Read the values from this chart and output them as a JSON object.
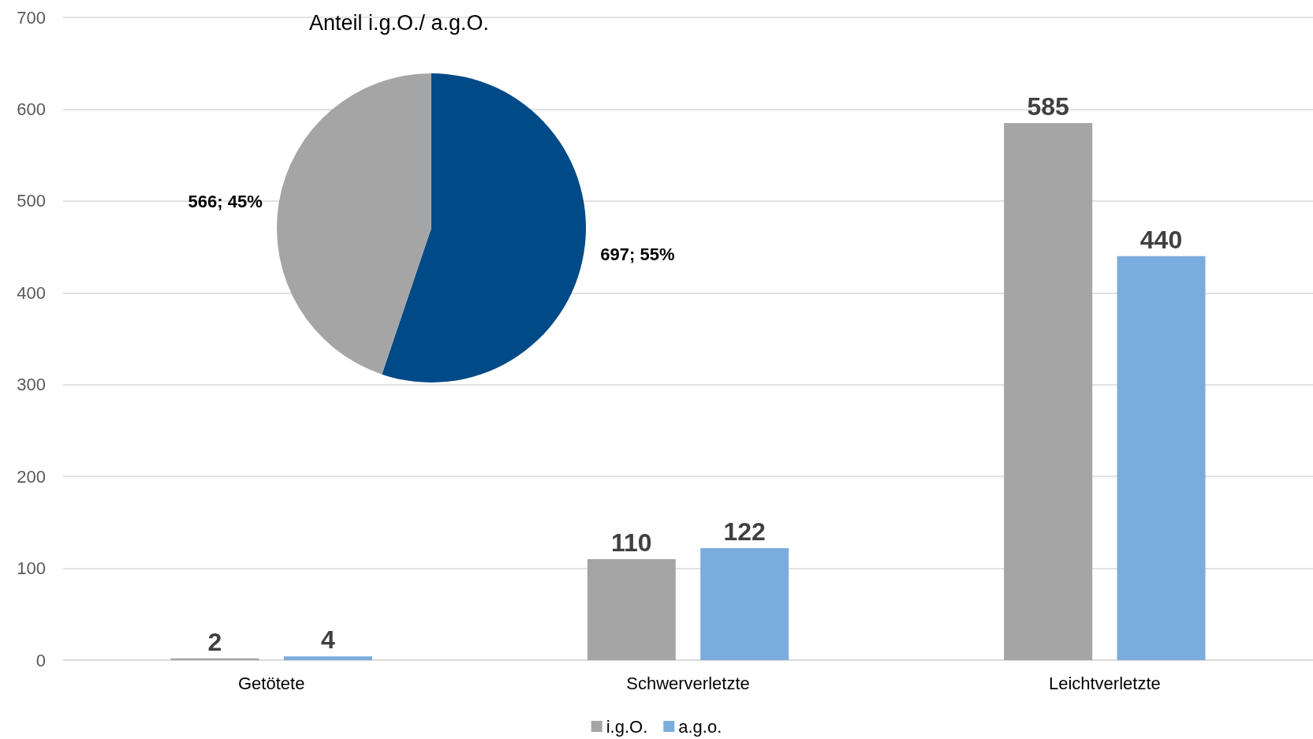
{
  "chart_data": [
    {
      "type": "bar",
      "categories": [
        "Getötete",
        "Schwerverletzte",
        "Leichtverletzte"
      ],
      "series": [
        {
          "name": "i.g.O.",
          "color": "#a5a5a5",
          "values": [
            2,
            110,
            585
          ]
        },
        {
          "name": "a.g.o.",
          "color": "#7aaddd",
          "values": [
            4,
            122,
            440
          ]
        }
      ],
      "ylim": [
        0,
        700
      ],
      "yticks": [
        0,
        100,
        200,
        300,
        400,
        500,
        600,
        700
      ],
      "grid": "y",
      "legend": "bottom",
      "data_labels": true
    },
    {
      "type": "pie",
      "title": "Anteil i.g.O./ a.g.O.",
      "categories": [
        null,
        null
      ],
      "values": [
        697,
        566
      ],
      "colors": [
        "#004a87",
        "#a5a5a5"
      ],
      "value_labels": [
        "697; 55%",
        "566; 45%"
      ]
    }
  ]
}
